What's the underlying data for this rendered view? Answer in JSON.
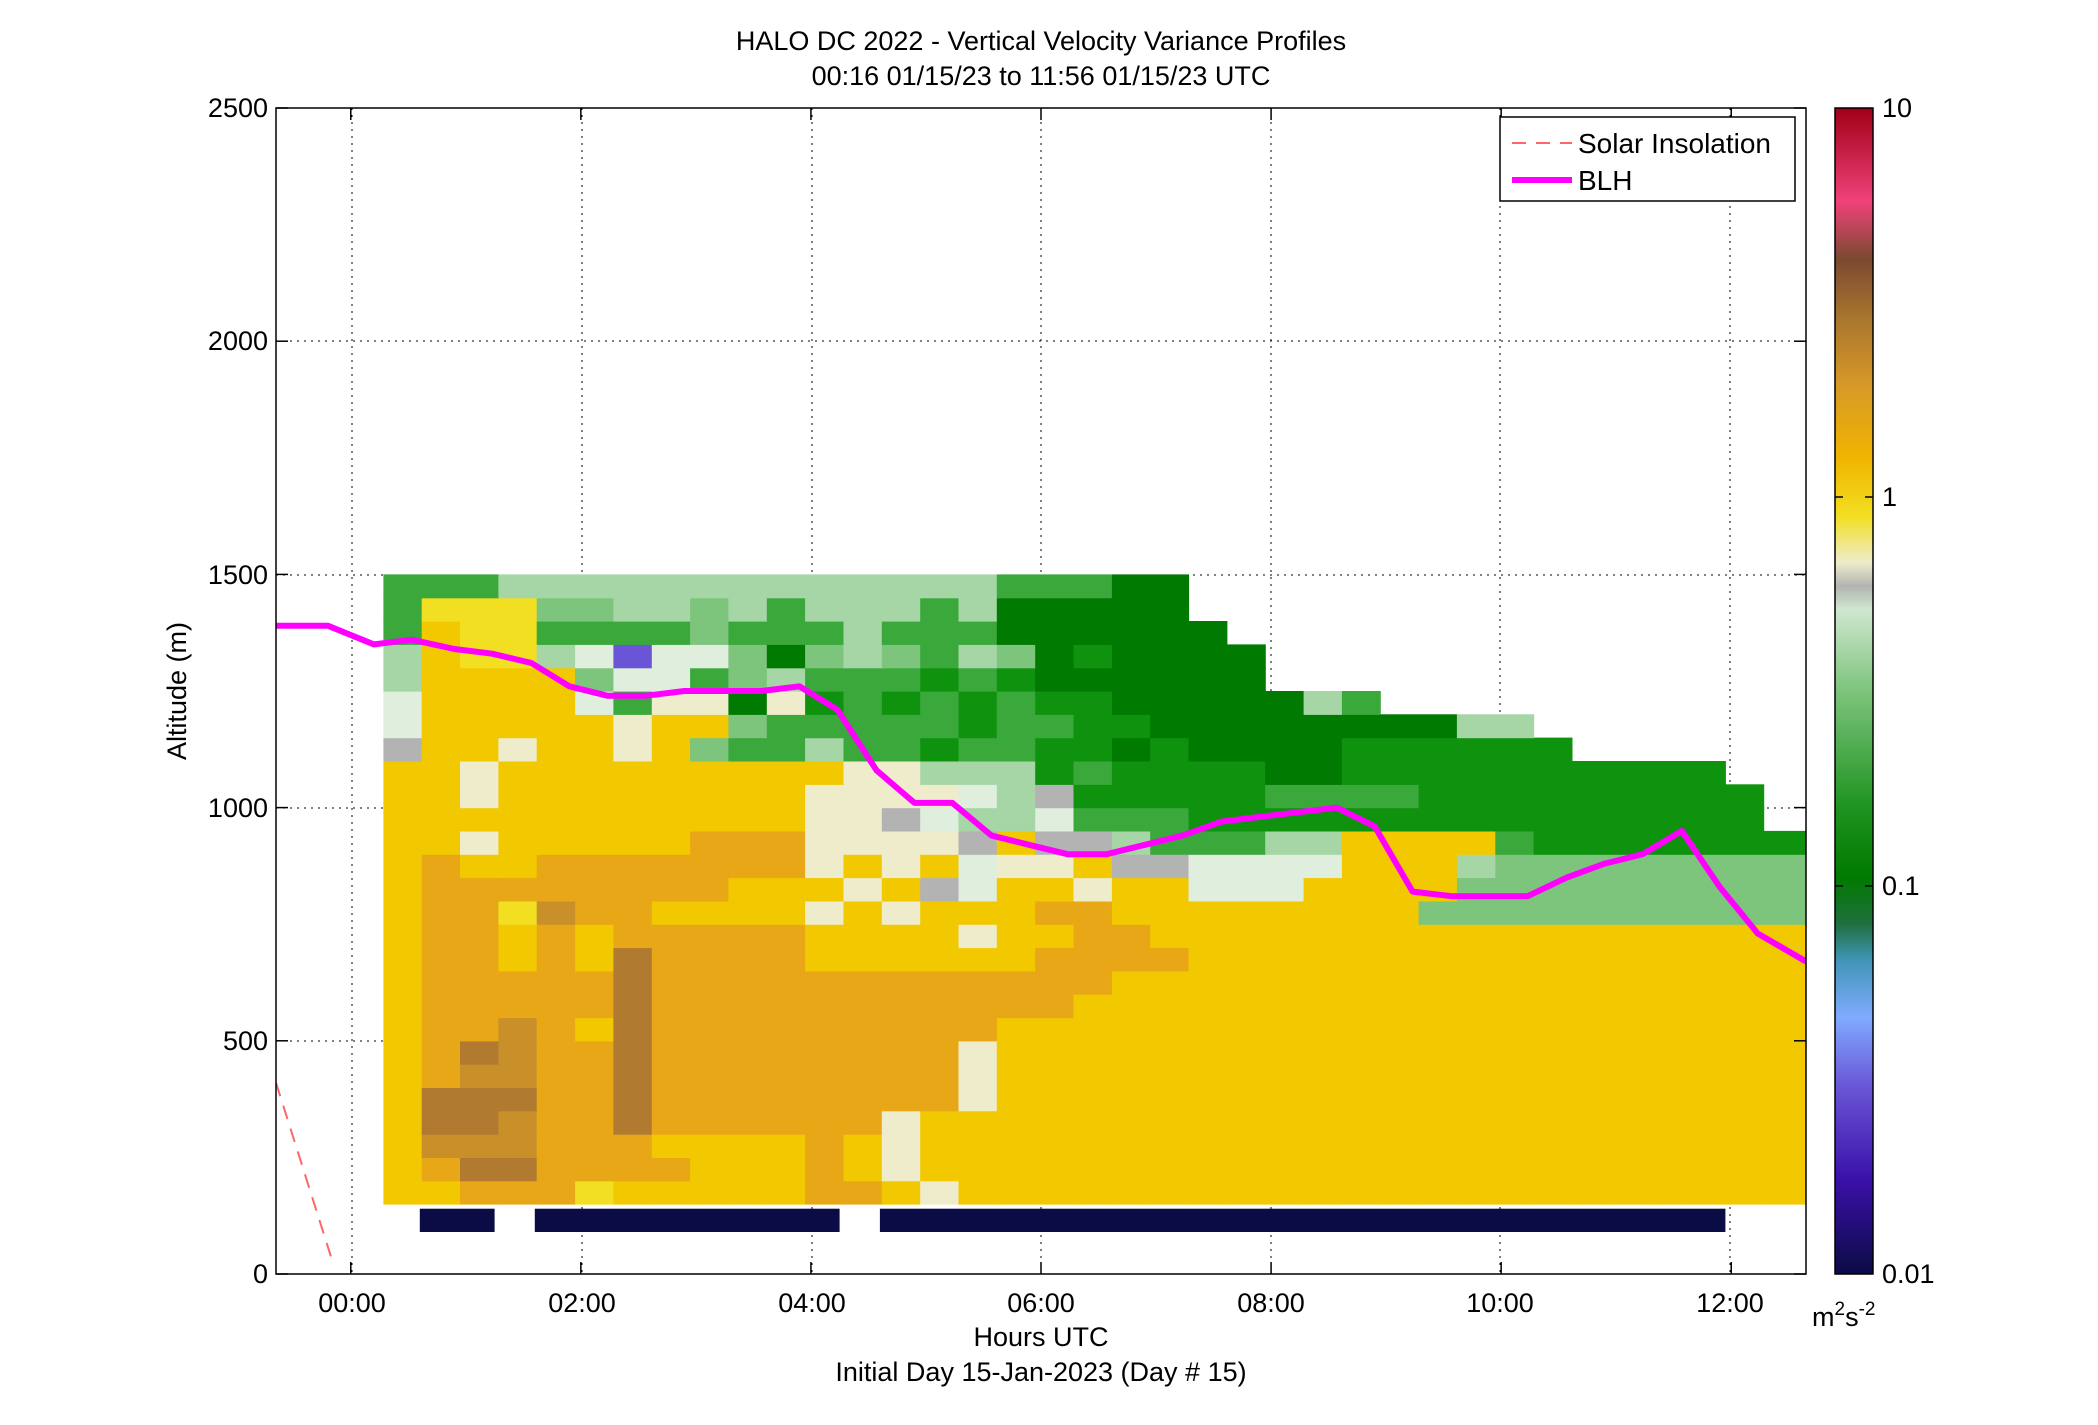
{
  "chart_data": {
    "type": "heatmap",
    "title": "HALO DC 2022 - Vertical Velocity Variance Profiles",
    "subtitle": "00:16 01/15/23 to 11:56 01/15/23  UTC",
    "xlabel": "Hours UTC",
    "xlabel2": "Initial Day 15-Jan-2023 (Day # 15)",
    "ylabel": "Altitude (m)",
    "xlim": [
      -0.65,
      12.65
    ],
    "ylim": [
      0,
      2500
    ],
    "x_ticks": [
      0,
      2,
      4,
      6,
      8,
      10,
      12
    ],
    "x_tick_labels": [
      "00:00",
      "02:00",
      "04:00",
      "06:00",
      "08:00",
      "10:00",
      "12:00"
    ],
    "y_ticks": [
      0,
      500,
      1000,
      1500,
      2000,
      2500
    ],
    "y_tick_labels": [
      "0",
      "500",
      "1000",
      "1500",
      "2000",
      "2500"
    ],
    "grid": true,
    "legend_position": "top-right",
    "legend": [
      {
        "label": "Solar Insolation",
        "style": "dashed",
        "color": "#ff6666"
      },
      {
        "label": "BLH",
        "style": "solid",
        "color": "#ff00ff"
      }
    ],
    "colorbar": {
      "scale": "log",
      "range": [
        0.01,
        10
      ],
      "tick_values": [
        0.01,
        0.1,
        1,
        10
      ],
      "tick_labels": [
        "0.01",
        "0.1",
        "1",
        "10"
      ],
      "units_base": "m",
      "units_exp1": "2",
      "units_mid": "s",
      "units_exp2": "-2"
    },
    "heatmap": {
      "x_start": 0.2833,
      "x_step": 0.3333,
      "y_start": 150,
      "y_step": 50,
      "color_codes": {
        "n": "#0b0b45",
        "p": "#3a10a8",
        "v": "#6a55d6",
        "l": "#80aaff",
        "c": "#5f9fc8",
        "t": "#2c7f6a",
        "g": "#1f6f3f",
        "D": "#007a00",
        "G": "#0f930f",
        "m": "#3aa83a",
        "h": "#7dc47d",
        "k": "#a6d6a6",
        "w": "#dfeedd",
        "r": "#b3b3b3",
        "e": "#eeeccb",
        "Y": "#f2df22",
        "y": "#f2c800",
        "o": "#f0b400",
        "O": "#e8a717",
        "b": "#c9902a",
        "B": "#b07a30"
      },
      "rows_bottom_to_top": [
        "yyOOOYyyyyyOOyeyyyyyyyyyyyyyyyyyyyyyyy",
        "yOBBOOOOyyyOyeyyyyyyyyyyyyyyyyyyyyyyyy",
        "ybbbOOOyyyyOyeyyyyyyyyyyyyyyyyyyyyyyyy",
        "yBBbOOBOOOOOOeyyyyyyyyyyyyyyyyyyyyyyyy",
        "yBBBOOBOOOOOOOOeyyyyyyyyyyyyyyyyyyyyyy",
        "yObbOOBOOOOOOOOeyyyyyyyyyyyyyyyyyyyyyy",
        "yOBbOOBOOOOOOOOeyyyyyyyyyyyyyyyyyyyyyy",
        "yOObOyBOOOOOOOOOyyyyyyyyyyyyyyyyyyyyyy",
        "yOOOOOBOOOOOOOOOOOyyyyyyyyyyyyyyyyyyyy",
        "yOOOOOBOOOOOOOOOOOOyyyyyyyyyyyyyyyyyyy",
        "yOOyOyBOOOOyyyyyyOOOOyyyyyyyyyyyyyyyyy",
        "yOOyOyOOOOOyyyyeyyOOyyyyyyyyyyyyyyyyyy",
        "yOOYbOOyyyyeyeyyyOOyyyyyyyyhhhhhhhhhhh",
        "yOOOOOOOOyyyeyrwyyeyywwwyyyyhhhhhhhhhh",
        "yOyyOOOOOOOeyeyweeyrrwwwwyyykhhhhhhhhh",
        "yyeyyyyyOOOeeeeryrrkmmmkkyyyymGGGGGGGG",
        "yyyyyyyyyyyeerwkkwmmmGGGGGGGGGGGGGGG",
        "yyeyyyyyyyyeeeewkrGGGGGmmmmGGGGGGGGG",
        "yyeyyyyyyyyyeekkkGmGGGGDDGGGGGGGGGG",
        "ryyeyyeyhmmkmmGmmGGDGDDDDGGGGGG",
        "wyyyyyeyyhmmmmmGmmGGDDDDDDDDkk",
        "wyyyywmeeDeGmGmGmGGDDDDDkm",
        "kyyyyhwwmhkmmmGmGDDDDDD",
        "kyYYkwvwwhDhkhmkhDGDDDD",
        "myYYmmmmhmmmkmmmDDDDDD",
        "mYYYhhkkhkmkkkmkDDDDD",
        "mmmkkkkkkkkkkkkkmmmDD"
      ],
      "masked_cells_note": "cells outside the measured region are transparent"
    },
    "blh": {
      "x": [
        -0.65,
        -0.2,
        0.1,
        0.2,
        0.53,
        0.9,
        1.23,
        1.57,
        1.9,
        2.23,
        2.57,
        2.9,
        3.23,
        3.57,
        3.9,
        4.23,
        4.57,
        4.9,
        5.23,
        5.57,
        5.9,
        6.23,
        6.57,
        6.9,
        7.23,
        7.57,
        7.9,
        8.23,
        8.57,
        8.9,
        9.23,
        9.57,
        9.9,
        10.23,
        10.57,
        10.9,
        11.23,
        11.57,
        11.9,
        12.23,
        12.65
      ],
      "y": [
        1390,
        1390,
        1360,
        1350,
        1360,
        1340,
        1330,
        1310,
        1260,
        1240,
        1240,
        1250,
        1250,
        1250,
        1260,
        1210,
        1080,
        1010,
        1010,
        940,
        920,
        900,
        900,
        920,
        940,
        970,
        980,
        990,
        1000,
        960,
        820,
        810,
        810,
        810,
        850,
        880,
        900,
        950,
        830,
        730,
        670
      ]
    },
    "solar_insolation": {
      "x": [
        -0.65,
        -0.15
      ],
      "y": [
        410,
        20
      ]
    },
    "data_availability_bars": [
      [
        0.6,
        1.25
      ],
      [
        1.6,
        4.25
      ],
      [
        4.6,
        11.95
      ]
    ]
  }
}
